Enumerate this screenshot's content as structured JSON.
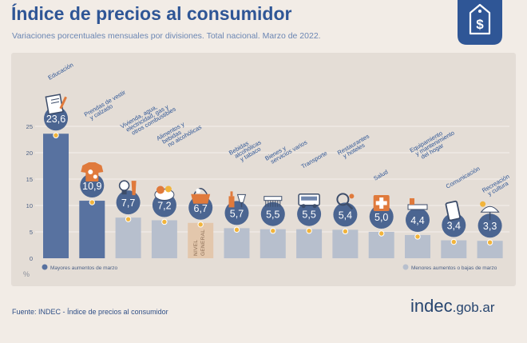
{
  "title": "Índice de precios al consumidor",
  "subtitle": "Variaciones porcentuales mensuales por divisiones. Total nacional. Marzo de 2022.",
  "source": "Fuente: INDEC - Índice de precios al consumidor",
  "logo": {
    "name": "indec",
    "domain": ".gob.ar"
  },
  "badge_icon": "price-tag-dollar-icon",
  "colors": {
    "high": "#5872a0",
    "low": "#b7bfcd",
    "general": "#e3c7ac",
    "circle": "#4b6591",
    "dot": "#f1b43c",
    "axis_text": "#4a5f84",
    "grid": "#f4f0ec",
    "label": "#2f5696"
  },
  "chart_data": {
    "type": "bar",
    "title": "Índice de precios al consumidor",
    "ylabel": "%",
    "ylim": [
      0,
      25
    ],
    "yticks": [
      0,
      5,
      10,
      15,
      20,
      25
    ],
    "grid": true,
    "legend": [
      {
        "label": "Mayores aumentos de marzo",
        "group": "high",
        "position": "bottom-left"
      },
      {
        "label": "Menores aumentos o bajas de marzo",
        "group": "low",
        "position": "bottom-right"
      }
    ],
    "categories": [
      "Educación",
      "Prendas de vestir y calzado",
      "Vivienda, agua, electricidad, gas y otros combustibles",
      "Alimentos y bebidas no alcohólicas",
      "Nivel general",
      "Bebidas alcohólicas y tabaco",
      "Bienes y servicios varios",
      "Transporte",
      "Restaurantes y hoteles",
      "Salud",
      "Equipamiento y mantenimiento del hogar",
      "Comunicación",
      "Recreación y cultura"
    ],
    "values": [
      23.6,
      10.9,
      7.7,
      7.2,
      6.7,
      5.7,
      5.5,
      5.5,
      5.4,
      5.0,
      4.4,
      3.4,
      3.3
    ],
    "value_labels": [
      "23,6",
      "10,9",
      "7,7",
      "7,2",
      "6,7",
      "5,7",
      "5,5",
      "5,5",
      "5,4",
      "5,0",
      "4,4",
      "3,4",
      "3,3"
    ],
    "groups": [
      "high",
      "high",
      "low",
      "low",
      "general",
      "low",
      "low",
      "low",
      "low",
      "low",
      "low",
      "low",
      "low"
    ],
    "category_labels": [
      [
        "Educación"
      ],
      [
        "Prendas de vestir",
        "y calzado"
      ],
      [
        "Vivienda, agua,",
        "electricidad, gas y",
        "otros combustibles"
      ],
      [
        "Alimentos y",
        "bebidas",
        "no alcohólicas"
      ],
      [
        "NIVEL",
        "GENERAL"
      ],
      [
        "Bebidas",
        "alcohólicas",
        "y tabaco"
      ],
      [
        "Bienes y",
        "servicios varios"
      ],
      [
        "Transporte"
      ],
      [
        "Restaurantes",
        "y hoteles"
      ],
      [
        "Salud"
      ],
      [
        "Equipamiento",
        "y mantenimiento",
        "del hogar"
      ],
      [
        "Comunicación"
      ],
      [
        "Recreación",
        "y cultura"
      ]
    ],
    "icons": [
      "book-icon",
      "clothing-icon",
      "lightbulb-icon",
      "food-icon",
      "basket-icon",
      "bottle-icon",
      "comb-icon",
      "bus-icon",
      "cutlery-icon",
      "medical-cross-icon",
      "home-tools-icon",
      "cellphone-icon",
      "beach-icon"
    ]
  }
}
